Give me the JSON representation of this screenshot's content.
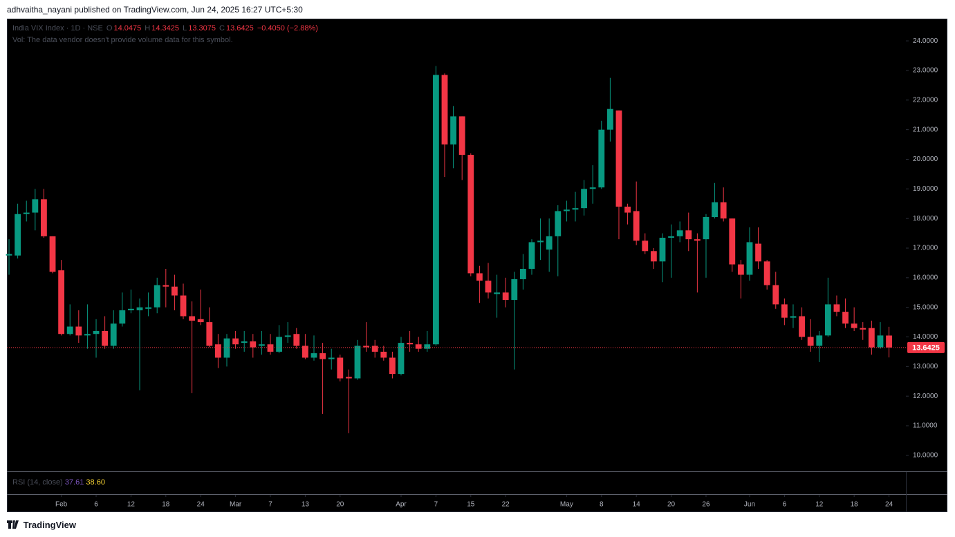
{
  "header": {
    "publisher": "adhvaitha_nayani published on TradingView.com, Jun 24, 2025 16:27 UTC+5:30"
  },
  "chart_data": {
    "type": "candlestick",
    "title": "India VIX Index · 1D · NSE",
    "ohlc_labels": [
      "O",
      "H",
      "L",
      "C"
    ],
    "change_label": "−0.4050 (−2.88%)",
    "volume_note": "Vol: The data vendor doesn't provide volume data for this symbol.",
    "up_color": "#089981",
    "down_color": "#f23645",
    "candles": [
      [
        16.75,
        17.3,
        16.1,
        16.8
      ],
      [
        16.75,
        18.5,
        16.65,
        18.15
      ],
      [
        18.15,
        18.6,
        17.9,
        18.2
      ],
      [
        18.2,
        19.0,
        17.6,
        18.65
      ],
      [
        18.65,
        19.0,
        17.35,
        17.4
      ],
      [
        17.4,
        17.4,
        16.15,
        16.2
      ],
      [
        16.25,
        16.6,
        14.05,
        14.1
      ],
      [
        14.1,
        15.1,
        14.05,
        14.35
      ],
      [
        14.35,
        14.9,
        13.8,
        14.05
      ],
      [
        14.05,
        15.1,
        13.6,
        14.1
      ],
      [
        14.1,
        14.6,
        13.3,
        14.2
      ],
      [
        14.2,
        14.7,
        13.6,
        13.7
      ],
      [
        13.7,
        14.9,
        13.6,
        14.45
      ],
      [
        14.45,
        15.5,
        14.35,
        14.9
      ],
      [
        14.9,
        15.6,
        14.8,
        14.95
      ],
      [
        14.9,
        15.3,
        12.2,
        15.0
      ],
      [
        14.95,
        15.5,
        14.7,
        15.0
      ],
      [
        15.0,
        16.0,
        14.8,
        15.75
      ],
      [
        15.75,
        16.3,
        15.0,
        15.7
      ],
      [
        15.7,
        16.1,
        14.9,
        15.4
      ],
      [
        15.4,
        15.8,
        14.6,
        14.7
      ],
      [
        14.7,
        15.2,
        12.1,
        14.55
      ],
      [
        14.6,
        15.6,
        14.4,
        14.5
      ],
      [
        14.5,
        15.0,
        13.65,
        13.7
      ],
      [
        13.75,
        14.1,
        12.95,
        13.3
      ],
      [
        13.3,
        14.1,
        13.0,
        13.95
      ],
      [
        13.95,
        14.2,
        13.6,
        13.75
      ],
      [
        13.8,
        14.2,
        13.5,
        13.85
      ],
      [
        13.85,
        14.1,
        13.3,
        13.65
      ],
      [
        13.7,
        14.2,
        13.4,
        13.75
      ],
      [
        13.75,
        14.1,
        13.4,
        13.5
      ],
      [
        13.5,
        14.4,
        13.45,
        14.0
      ],
      [
        14.0,
        14.5,
        13.8,
        14.05
      ],
      [
        14.1,
        14.3,
        13.6,
        13.7
      ],
      [
        13.7,
        14.1,
        13.25,
        13.3
      ],
      [
        13.3,
        14.05,
        13.2,
        13.45
      ],
      [
        13.45,
        13.8,
        11.4,
        13.25
      ],
      [
        13.25,
        13.6,
        12.9,
        13.3
      ],
      [
        13.3,
        13.4,
        12.5,
        12.6
      ],
      [
        12.65,
        12.9,
        10.75,
        12.6
      ],
      [
        12.6,
        13.9,
        12.55,
        13.7
      ],
      [
        13.7,
        14.5,
        13.5,
        13.65
      ],
      [
        13.7,
        13.9,
        13.3,
        13.5
      ],
      [
        13.5,
        13.7,
        13.2,
        13.3
      ],
      [
        13.3,
        13.5,
        12.6,
        12.75
      ],
      [
        12.75,
        14.0,
        12.7,
        13.8
      ],
      [
        13.8,
        14.2,
        13.5,
        13.75
      ],
      [
        13.75,
        14.0,
        13.5,
        13.6
      ],
      [
        13.6,
        14.2,
        13.5,
        13.75
      ],
      [
        13.75,
        23.15,
        13.7,
        22.85
      ],
      [
        22.85,
        22.9,
        19.4,
        20.5
      ],
      [
        20.5,
        21.8,
        19.7,
        21.45
      ],
      [
        21.45,
        21.45,
        19.3,
        20.15
      ],
      [
        20.15,
        20.2,
        16.05,
        16.15
      ],
      [
        16.15,
        16.4,
        15.15,
        15.9
      ],
      [
        15.9,
        16.5,
        15.3,
        15.5
      ],
      [
        15.45,
        16.1,
        14.65,
        15.5
      ],
      [
        15.5,
        16.0,
        15.0,
        15.25
      ],
      [
        15.25,
        16.2,
        12.9,
        15.95
      ],
      [
        15.95,
        16.8,
        15.6,
        16.3
      ],
      [
        16.3,
        17.3,
        16.1,
        17.2
      ],
      [
        17.2,
        18.0,
        16.6,
        17.25
      ],
      [
        16.95,
        18.0,
        16.2,
        17.4
      ],
      [
        17.4,
        18.45,
        16.05,
        18.25
      ],
      [
        18.25,
        18.6,
        17.9,
        18.3
      ],
      [
        18.3,
        18.9,
        17.9,
        18.35
      ],
      [
        18.35,
        19.3,
        18.1,
        19.0
      ],
      [
        19.0,
        19.8,
        18.5,
        19.05
      ],
      [
        19.05,
        21.3,
        19.0,
        21.0
      ],
      [
        21.0,
        22.75,
        20.6,
        21.7
      ],
      [
        21.65,
        21.65,
        17.3,
        18.4
      ],
      [
        18.4,
        18.5,
        17.8,
        18.2
      ],
      [
        18.25,
        19.25,
        17.1,
        17.25
      ],
      [
        17.25,
        17.5,
        16.8,
        16.9
      ],
      [
        16.9,
        17.0,
        16.3,
        16.55
      ],
      [
        16.55,
        17.5,
        15.85,
        17.35
      ],
      [
        17.35,
        17.8,
        16.0,
        17.4
      ],
      [
        17.4,
        17.9,
        17.2,
        17.6
      ],
      [
        17.6,
        18.2,
        16.9,
        17.3
      ],
      [
        17.3,
        17.5,
        15.5,
        17.25
      ],
      [
        17.3,
        18.15,
        16.0,
        18.05
      ],
      [
        18.05,
        19.2,
        18.0,
        18.55
      ],
      [
        18.55,
        19.05,
        17.9,
        18.0
      ],
      [
        18.0,
        18.0,
        16.2,
        16.45
      ],
      [
        16.45,
        16.6,
        15.3,
        16.1
      ],
      [
        16.1,
        17.7,
        15.9,
        17.2
      ],
      [
        17.15,
        17.7,
        16.3,
        16.55
      ],
      [
        16.55,
        16.6,
        15.6,
        15.75
      ],
      [
        15.75,
        16.2,
        14.95,
        15.1
      ],
      [
        15.1,
        15.3,
        14.4,
        14.65
      ],
      [
        14.65,
        15.1,
        14.3,
        14.7
      ],
      [
        14.7,
        15.0,
        13.9,
        14.0
      ],
      [
        14.0,
        14.6,
        13.5,
        13.7
      ],
      [
        13.7,
        14.2,
        13.15,
        14.05
      ],
      [
        14.05,
        16.0,
        14.0,
        15.1
      ],
      [
        15.1,
        15.4,
        14.7,
        14.85
      ],
      [
        14.85,
        15.3,
        14.3,
        14.45
      ],
      [
        14.45,
        15.0,
        14.2,
        14.3
      ],
      [
        14.3,
        14.5,
        13.9,
        14.25
      ],
      [
        14.3,
        14.55,
        13.4,
        13.65
      ],
      [
        13.65,
        14.5,
        13.6,
        14.05
      ],
      [
        14.0475,
        14.3425,
        13.3075,
        13.6425
      ]
    ],
    "xlim": [
      -0.24,
      102.94
    ],
    "ylim": [
      9.46,
      24.75
    ],
    "xticks": [
      {
        "value": 6,
        "label": "Feb"
      },
      {
        "value": 10,
        "label": "6"
      },
      {
        "value": 14,
        "label": "12"
      },
      {
        "value": 18,
        "label": "18"
      },
      {
        "value": 22,
        "label": "24"
      },
      {
        "value": 26,
        "label": "Mar"
      },
      {
        "value": 30,
        "label": "7"
      },
      {
        "value": 34,
        "label": "13"
      },
      {
        "value": 38,
        "label": "20"
      },
      {
        "value": 45,
        "label": "Apr"
      },
      {
        "value": 49,
        "label": "7"
      },
      {
        "value": 53,
        "label": "15"
      },
      {
        "value": 57,
        "label": "22"
      },
      {
        "value": 64,
        "label": "May"
      },
      {
        "value": 68,
        "label": "8"
      },
      {
        "value": 72,
        "label": "14"
      },
      {
        "value": 76,
        "label": "20"
      },
      {
        "value": 80,
        "label": "26"
      },
      {
        "value": 85,
        "label": "Jun"
      },
      {
        "value": 89,
        "label": "6"
      },
      {
        "value": 93,
        "label": "12"
      },
      {
        "value": 97,
        "label": "18"
      },
      {
        "value": 101,
        "label": "24"
      }
    ],
    "yticks": [
      {
        "value": 10,
        "label": "10.0000"
      },
      {
        "value": 11,
        "label": "11.0000"
      },
      {
        "value": 12,
        "label": "12.0000"
      },
      {
        "value": 13,
        "label": "13.0000"
      },
      {
        "value": 14,
        "label": "14.0000"
      },
      {
        "value": 15,
        "label": "15.0000"
      },
      {
        "value": 16,
        "label": "16.0000"
      },
      {
        "value": 17,
        "label": "17.0000"
      },
      {
        "value": 18,
        "label": "18.0000"
      },
      {
        "value": 19,
        "label": "19.0000"
      },
      {
        "value": 20,
        "label": "20.0000"
      },
      {
        "value": 21,
        "label": "21.0000"
      },
      {
        "value": 22,
        "label": "22.0000"
      },
      {
        "value": 23,
        "label": "23.0000"
      },
      {
        "value": 24,
        "label": "24.0000"
      }
    ],
    "rsi": {
      "title": "RSI (14, close)",
      "values": [
        37.61,
        38.6
      ],
      "value_labels": [
        "37.61",
        "38.60"
      ],
      "colors": [
        "#7e57c2",
        "#fdd835"
      ]
    }
  },
  "footer": {
    "brand": "TradingView"
  }
}
